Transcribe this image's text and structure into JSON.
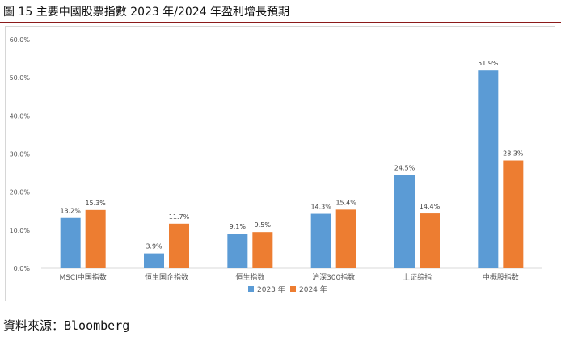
{
  "title": "圖 15 主要中國股票指數 2023 年/2024 年盈利增長預期",
  "source": "資料來源：Bloomberg",
  "chart_data": {
    "type": "bar",
    "categories": [
      "MSCI中国指数",
      "恒生国企指数",
      "恒生指数",
      "沪深300指数",
      "上证综指",
      "中概股指数"
    ],
    "series": [
      {
        "name": "2023 年",
        "values": [
          13.2,
          3.9,
          9.1,
          14.3,
          24.5,
          51.9
        ],
        "color": "#5b9bd5"
      },
      {
        "name": "2024 年",
        "values": [
          15.3,
          11.7,
          9.5,
          15.4,
          14.4,
          28.3
        ],
        "color": "#ed7d31"
      }
    ],
    "data_labels": [
      [
        "13.2%",
        "3.9%",
        "9.1%",
        "14.3%",
        "24.5%",
        "51.9%"
      ],
      [
        "15.3%",
        "11.7%",
        "9.5%",
        "15.4%",
        "14.4%",
        "28.3%"
      ]
    ],
    "yticks": [
      "0.0%",
      "10.0%",
      "20.0%",
      "30.0%",
      "40.0%",
      "50.0%",
      "60.0%"
    ],
    "ylim": [
      0,
      60
    ],
    "ytick_values": [
      0,
      10,
      20,
      30,
      40,
      50,
      60
    ],
    "grid": false,
    "legend_position": "bottom-center",
    "title": "",
    "xlabel": "",
    "ylabel": ""
  }
}
